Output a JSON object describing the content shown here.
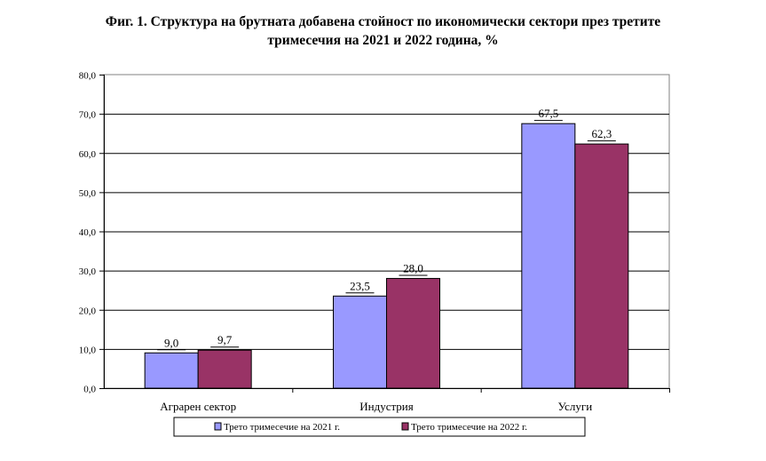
{
  "chart_data": {
    "type": "bar",
    "title_line1": "Фиг. 1. Структура на брутната добавена стойност по икономически сектори през третите",
    "title_line2": "тримесечия на 2021 и 2022 година, %",
    "categories": [
      "Аграрен сектор",
      "Индустрия",
      "Услуги"
    ],
    "series": [
      {
        "name": "Трето тримесечие на 2021 г.",
        "values": [
          9.0,
          23.5,
          67.5
        ],
        "labels": [
          "9,0",
          "23,5",
          "67,5"
        ],
        "color": "#9999FF"
      },
      {
        "name": "Трето тримесечие на 2022 г.",
        "values": [
          9.7,
          28.0,
          62.3
        ],
        "labels": [
          "9,7",
          "28,0",
          "62,3"
        ],
        "color": "#993366"
      }
    ],
    "ylim": [
      0,
      80
    ],
    "yticks": [
      0,
      10,
      20,
      30,
      40,
      50,
      60,
      70,
      80
    ],
    "ytick_labels": [
      "0,0",
      "10,0",
      "20,0",
      "30,0",
      "40,0",
      "50,0",
      "60,0",
      "70,0",
      "80,0"
    ],
    "xlabel": "",
    "ylabel": "",
    "grid": true,
    "legend_position": "bottom"
  }
}
